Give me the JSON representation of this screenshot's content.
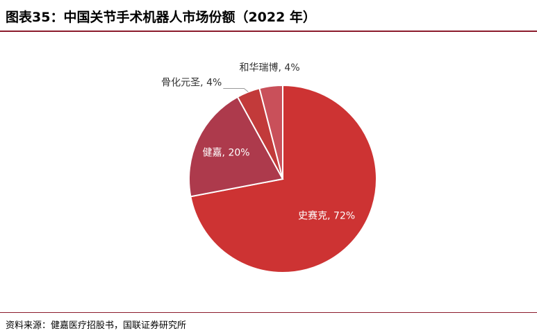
{
  "title": "图表35：中国关节手术机器人市场份额（2022 年）",
  "source": "资料来源：健嘉医疗招股书，国联证券研究所",
  "colors": {
    "accent": "#8b1a2b"
  },
  "chart_data": {
    "type": "pie",
    "title": "",
    "slices": [
      {
        "label": "史赛克",
        "value": 72,
        "text": "史赛克, 72%",
        "color": "#cd3333"
      },
      {
        "label": "健嘉",
        "value": 20,
        "text": "健嘉, 20%",
        "color": "#ad3a4c"
      },
      {
        "label": "骨化元圣",
        "value": 4,
        "text": "骨化元圣, 4%",
        "color": "#c23a3a"
      },
      {
        "label": "和华瑞博",
        "value": 4,
        "text": "和华瑞博, 4%",
        "color": "#c9505a"
      }
    ]
  }
}
